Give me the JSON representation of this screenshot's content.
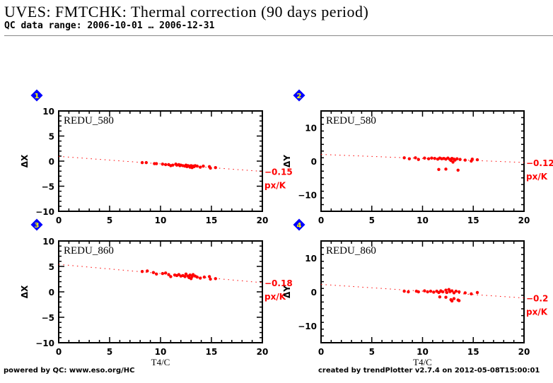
{
  "header": {
    "title": "UVES: FMTCHK: Thermal correction (90 days period)",
    "subtitle": "QC data range: 2006-10-01 … 2006-12-31"
  },
  "footer": {
    "left": "powered by QC: www.eso.org/HC",
    "right": "created by trendPlotter v2.7.4 on 2012-05-08T15:00:01"
  },
  "colors": {
    "data": "#ff0000",
    "marker": "#0000ff",
    "marker_text": "#ffff00",
    "axis": "#000000"
  },
  "chart_data": [
    {
      "type": "scatter",
      "panel_number": "1",
      "label": "REDU_580",
      "xlabel": "",
      "ylabel": "ΔX",
      "xlim": [
        0,
        20
      ],
      "ylim": [
        -10,
        10
      ],
      "xticks": [
        "0",
        "5",
        "10",
        "15",
        "20"
      ],
      "yticks": [
        "10",
        "5",
        "0",
        "-5",
        "-10"
      ],
      "ytick_values": [
        10,
        5,
        0,
        -5,
        -10
      ],
      "fit": {
        "intercept": 0.95,
        "slope": -0.15
      },
      "slope_label": "-0.15",
      "slope_unit": "px/K",
      "points": [
        [
          8.2,
          -0.3
        ],
        [
          8.6,
          -0.3
        ],
        [
          9.4,
          -0.5
        ],
        [
          9.6,
          -0.5
        ],
        [
          10.2,
          -0.6
        ],
        [
          10.5,
          -0.7
        ],
        [
          10.8,
          -0.7
        ],
        [
          11.0,
          -0.9
        ],
        [
          11.2,
          -0.8
        ],
        [
          11.5,
          -0.6
        ],
        [
          11.6,
          -0.8
        ],
        [
          11.8,
          -0.7
        ],
        [
          11.9,
          -0.9
        ],
        [
          12.0,
          -0.8
        ],
        [
          12.2,
          -0.9
        ],
        [
          12.4,
          -1.0
        ],
        [
          12.5,
          -0.8
        ],
        [
          12.6,
          -1.1
        ],
        [
          12.7,
          -0.9
        ],
        [
          12.8,
          -1.0
        ],
        [
          12.9,
          -1.2
        ],
        [
          13.0,
          -0.9
        ],
        [
          13.1,
          -1.3
        ],
        [
          13.2,
          -1.0
        ],
        [
          13.3,
          -1.1
        ],
        [
          13.4,
          -0.9
        ],
        [
          13.6,
          -1.0
        ],
        [
          13.9,
          -1.2
        ],
        [
          14.2,
          -1.0
        ],
        [
          14.8,
          -1.1
        ],
        [
          14.9,
          -1.4
        ],
        [
          15.4,
          -1.3
        ]
      ]
    },
    {
      "type": "scatter",
      "panel_number": "2",
      "label": "REDU_580",
      "xlabel": "",
      "ylabel": "ΔY",
      "xlim": [
        0,
        20
      ],
      "ylim": [
        -15,
        15
      ],
      "xticks": [
        "0",
        "5",
        "10",
        "15",
        "20"
      ],
      "yticks": [
        "10",
        "0",
        "-10"
      ],
      "ytick_values": [
        10,
        0,
        -10
      ],
      "fit": {
        "intercept": 2.0,
        "slope": -0.12
      },
      "slope_label": "-0.12",
      "slope_unit": "px/K",
      "points": [
        [
          8.2,
          1.0
        ],
        [
          8.7,
          0.7
        ],
        [
          9.3,
          1.0
        ],
        [
          9.6,
          0.5
        ],
        [
          10.2,
          0.9
        ],
        [
          10.6,
          0.7
        ],
        [
          10.9,
          0.9
        ],
        [
          11.2,
          0.8
        ],
        [
          11.5,
          0.6
        ],
        [
          11.7,
          0.9
        ],
        [
          11.9,
          0.7
        ],
        [
          12.1,
          0.8
        ],
        [
          12.3,
          0.6
        ],
        [
          12.5,
          0.9
        ],
        [
          12.7,
          0.5
        ],
        [
          12.8,
          0.2
        ],
        [
          12.9,
          0.8
        ],
        [
          13.0,
          -0.3
        ],
        [
          13.1,
          0.6
        ],
        [
          13.2,
          0.3
        ],
        [
          13.4,
          0.7
        ],
        [
          13.7,
          0.5
        ],
        [
          14.2,
          0.3
        ],
        [
          14.8,
          0.0
        ],
        [
          14.9,
          0.6
        ],
        [
          15.4,
          0.4
        ],
        [
          11.6,
          -2.5
        ],
        [
          12.3,
          -2.4
        ],
        [
          13.5,
          -2.7
        ]
      ]
    },
    {
      "type": "scatter",
      "panel_number": "3",
      "label": "REDU_860",
      "xlabel": "T4/C",
      "ylabel": "ΔX",
      "xlim": [
        0,
        20
      ],
      "ylim": [
        -10,
        10
      ],
      "xticks": [
        "0",
        "5",
        "10",
        "15",
        "20"
      ],
      "yticks": [
        "10",
        "5",
        "0",
        "-5",
        "-10"
      ],
      "ytick_values": [
        10,
        5,
        0,
        -5,
        -10
      ],
      "fit": {
        "intercept": 5.4,
        "slope": -0.18
      },
      "slope_label": "-0.18",
      "slope_unit": "px/K",
      "points": [
        [
          8.2,
          4.0
        ],
        [
          8.7,
          4.1
        ],
        [
          9.3,
          3.8
        ],
        [
          9.6,
          3.5
        ],
        [
          10.2,
          3.6
        ],
        [
          10.5,
          3.7
        ],
        [
          10.8,
          3.4
        ],
        [
          11.0,
          3.0
        ],
        [
          11.4,
          3.3
        ],
        [
          11.6,
          3.2
        ],
        [
          11.8,
          3.4
        ],
        [
          12.0,
          3.1
        ],
        [
          12.2,
          3.2
        ],
        [
          12.4,
          3.0
        ],
        [
          12.5,
          3.5
        ],
        [
          12.7,
          3.1
        ],
        [
          12.8,
          2.8
        ],
        [
          12.9,
          3.3
        ],
        [
          13.0,
          2.6
        ],
        [
          13.1,
          3.0
        ],
        [
          13.2,
          3.4
        ],
        [
          13.4,
          3.1
        ],
        [
          13.6,
          2.9
        ],
        [
          13.9,
          2.7
        ],
        [
          14.3,
          2.9
        ],
        [
          14.8,
          3.0
        ],
        [
          14.9,
          2.5
        ],
        [
          15.4,
          2.6
        ]
      ]
    },
    {
      "type": "scatter",
      "panel_number": "4",
      "label": "REDU_860",
      "xlabel": "T4/C",
      "ylabel": "ΔY",
      "xlim": [
        0,
        20
      ],
      "ylim": [
        -15,
        15
      ],
      "xticks": [
        "0",
        "5",
        "10",
        "15",
        "20"
      ],
      "yticks": [
        "10",
        "0",
        "-10"
      ],
      "ytick_values": [
        10,
        0,
        -10
      ],
      "fit": {
        "intercept": 2.2,
        "slope": -0.2
      },
      "slope_label": "-0.2",
      "slope_unit": "px/K",
      "points": [
        [
          8.2,
          0.2
        ],
        [
          8.6,
          0.0
        ],
        [
          9.4,
          0.2
        ],
        [
          9.6,
          0.0
        ],
        [
          10.2,
          0.3
        ],
        [
          10.5,
          0.0
        ],
        [
          10.8,
          0.2
        ],
        [
          11.1,
          -0.1
        ],
        [
          11.4,
          0.2
        ],
        [
          11.6,
          -0.2
        ],
        [
          11.8,
          0.3
        ],
        [
          12.0,
          0.0
        ],
        [
          12.3,
          0.5
        ],
        [
          12.4,
          -0.2
        ],
        [
          12.6,
          0.7
        ],
        [
          12.7,
          0.1
        ],
        [
          12.9,
          0.3
        ],
        [
          13.1,
          -0.3
        ],
        [
          13.3,
          0.2
        ],
        [
          13.6,
          0.0
        ],
        [
          14.2,
          -0.3
        ],
        [
          14.8,
          -0.6
        ],
        [
          15.4,
          -0.2
        ],
        [
          11.7,
          -1.5
        ],
        [
          12.3,
          -1.6
        ],
        [
          12.8,
          -2.3
        ],
        [
          12.9,
          -2.7
        ],
        [
          13.1,
          -2.0
        ],
        [
          13.5,
          -2.4
        ],
        [
          13.6,
          -2.6
        ]
      ]
    }
  ]
}
